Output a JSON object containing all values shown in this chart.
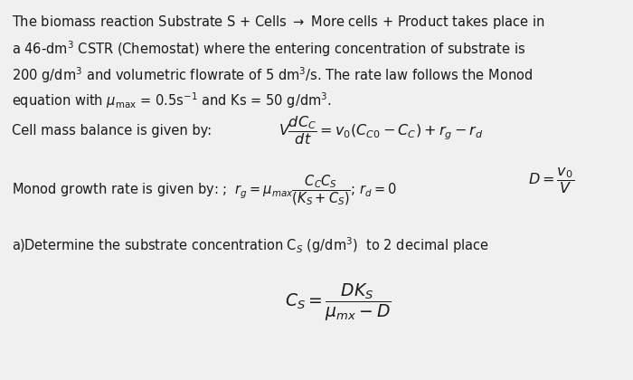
{
  "background_color": "#f0f0f0",
  "text_color": "#1a1a1a",
  "figsize": [
    7.0,
    4.2
  ],
  "dpi": 100,
  "fs_text": 10.5,
  "fs_eq": 11.5,
  "line1": "The biomass reaction Substrate S + Cells $\\rightarrow$ More cells + Product takes place in",
  "line2": "a 46-dm$^3$ CSTR (Chemostat) where the entering concentration of substrate is",
  "line3": "200 g/dm$^3$ and volumetric flowrate of 5 dm$^3$/s. The rate law follows the Monod",
  "line4": "equation with $\\mu_{\\mathrm{max}}$ = 0.5s$^{-1}$ and Ks = 50 g/dm$^3$.",
  "label_balance": "Cell mass balance is given by:",
  "eq_balance": "$V\\dfrac{dC_C}{dt} = v_0(C_{C0} - C_C) + r_g - r_d$",
  "label_monod": "Monod growth rate is given by: ;  $r_g = \\mu_{max}\\dfrac{C_C C_S}{(K_S + C_S)}$; $\\mathbf{r_d = 0}$",
  "eq_D": "$D = \\dfrac{v_0}{V}$",
  "label_parta": "a)Determine the substrate concentration C$_S$ (g/dm$^3$)  to 2 decimal place",
  "eq_Cs": "$C_S = \\dfrac{D K_S}{\\mu_{mx} - D}$"
}
